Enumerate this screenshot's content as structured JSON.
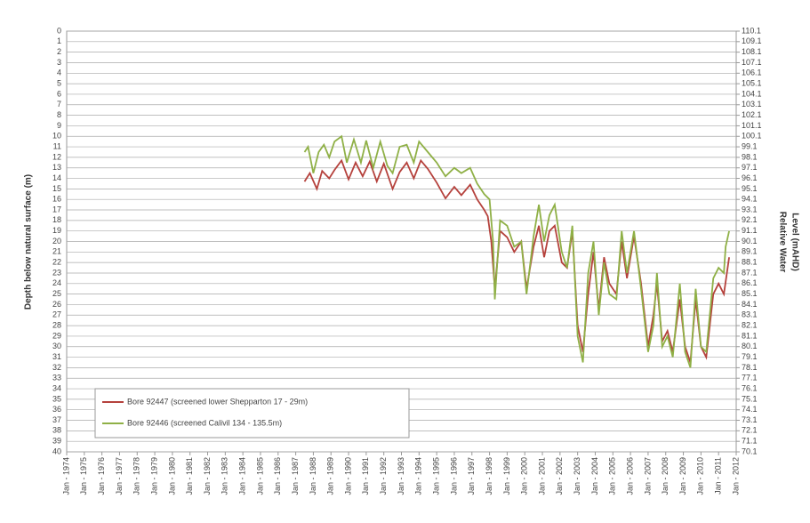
{
  "chart_data": {
    "type": "line",
    "ylabel": "Depth below natural surface (m)",
    "y2label": [
      "Relative Water",
      "Level (mAHD)"
    ],
    "xlim": [
      1974,
      2012
    ],
    "xticks": [
      {
        "value": 1974,
        "label": "Jan - 1974"
      },
      {
        "value": 1975,
        "label": "Jan - 1975"
      },
      {
        "value": 1976,
        "label": "Jan - 1976"
      },
      {
        "value": 1977,
        "label": "Jan - 1977"
      },
      {
        "value": 1978,
        "label": "Jan - 1978"
      },
      {
        "value": 1979,
        "label": "Jan - 1979"
      },
      {
        "value": 1980,
        "label": "Jan - 1980"
      },
      {
        "value": 1981,
        "label": "Jan - 1981"
      },
      {
        "value": 1982,
        "label": "Jan - 1982"
      },
      {
        "value": 1983,
        "label": "Jan - 1983"
      },
      {
        "value": 1984,
        "label": "Jan - 1984"
      },
      {
        "value": 1985,
        "label": "Jan - 1985"
      },
      {
        "value": 1986,
        "label": "Jan - 1986"
      },
      {
        "value": 1987,
        "label": "Jan - 1987"
      },
      {
        "value": 1988,
        "label": "Jan - 1988"
      },
      {
        "value": 1989,
        "label": "Jan - 1989"
      },
      {
        "value": 1990,
        "label": "Jan - 1990"
      },
      {
        "value": 1991,
        "label": "Jan - 1991"
      },
      {
        "value": 1992,
        "label": "Jan - 1992"
      },
      {
        "value": 1993,
        "label": "Jan - 1993"
      },
      {
        "value": 1994,
        "label": "Jan - 1994"
      },
      {
        "value": 1995,
        "label": "Jan - 1995"
      },
      {
        "value": 1996,
        "label": "Jan - 1996"
      },
      {
        "value": 1997,
        "label": "Jan - 1997"
      },
      {
        "value": 1998,
        "label": "Jan - 1998"
      },
      {
        "value": 1999,
        "label": "Jan - 1999"
      },
      {
        "value": 2000,
        "label": "Jan - 2000"
      },
      {
        "value": 2001,
        "label": "Jan - 2001"
      },
      {
        "value": 2002,
        "label": "Jan - 2002"
      },
      {
        "value": 2003,
        "label": "Jan - 2003"
      },
      {
        "value": 2004,
        "label": "Jan - 2004"
      },
      {
        "value": 2005,
        "label": "Jan - 2005"
      },
      {
        "value": 2006,
        "label": "Jan - 2006"
      },
      {
        "value": 2007,
        "label": "Jan - 2007"
      },
      {
        "value": 2008,
        "label": "Jan - 2008"
      },
      {
        "value": 2009,
        "label": "Jan - 2009"
      },
      {
        "value": 2010,
        "label": "Jan - 2010"
      },
      {
        "value": 2011,
        "label": "Jan - 2011"
      },
      {
        "value": 2012,
        "label": "Jan - 2012"
      }
    ],
    "ylim": [
      40,
      0
    ],
    "yticks": [
      0,
      1,
      2,
      3,
      4,
      5,
      6,
      7,
      8,
      9,
      10,
      11,
      12,
      13,
      14,
      15,
      16,
      17,
      18,
      19,
      20,
      21,
      22,
      23,
      24,
      25,
      26,
      27,
      28,
      29,
      30,
      31,
      32,
      33,
      34,
      35,
      36,
      37,
      38,
      39,
      40
    ],
    "y2lim": [
      70.1,
      110.1
    ],
    "y2ticks": [
      110.1,
      109.1,
      108.1,
      107.1,
      106.1,
      105.1,
      104.1,
      103.1,
      102.1,
      101.1,
      100.1,
      99.1,
      98.1,
      97.1,
      96.1,
      95.1,
      94.1,
      93.1,
      92.1,
      91.1,
      90.1,
      89.1,
      88.1,
      87.1,
      86.1,
      85.1,
      84.1,
      83.1,
      82.1,
      81.1,
      80.1,
      79.1,
      78.1,
      77.1,
      76.1,
      75.1,
      74.1,
      73.1,
      72.1,
      71.1,
      70.1
    ],
    "grid": true,
    "legend": "lower left",
    "series": [
      {
        "name": "Bore 92447 (screened lower Shepparton 17 - 29m)",
        "color": "#b5413c",
        "x": [
          1987.5,
          1987.8,
          1988.2,
          1988.5,
          1988.9,
          1989.2,
          1989.6,
          1990,
          1990.4,
          1990.8,
          1991.2,
          1991.6,
          1992,
          1992.5,
          1992.9,
          1993.3,
          1993.7,
          1994.1,
          1994.5,
          1995,
          1995.5,
          1996,
          1996.4,
          1996.9,
          1997.3,
          1997.7,
          1997.9,
          1998.1,
          1998.3,
          1998.6,
          1999,
          1999.4,
          1999.8,
          2000.1,
          2000.5,
          2000.8,
          2001.1,
          2001.4,
          2001.7,
          2002.1,
          2002.4,
          2002.7,
          2003,
          2003.3,
          2003.6,
          2003.9,
          2004.2,
          2004.5,
          2004.8,
          2005.2,
          2005.5,
          2005.8,
          2006.2,
          2006.6,
          2007,
          2007.3,
          2007.5,
          2007.8,
          2008.1,
          2008.4,
          2008.8,
          2009.1,
          2009.4,
          2009.7,
          2010,
          2010.3,
          2010.7,
          2011,
          2011.3,
          2011.6
        ],
        "values": [
          14.3,
          13.5,
          15,
          13.3,
          14,
          13.2,
          12.3,
          14.1,
          12.5,
          13.8,
          12.4,
          14.3,
          12.6,
          15,
          13.4,
          12.5,
          14,
          12.3,
          13.1,
          14.4,
          15.9,
          14.8,
          15.6,
          14.6,
          16,
          17,
          17.6,
          20,
          24.5,
          19,
          19.6,
          21,
          20,
          24.5,
          20.5,
          18.5,
          21.5,
          19,
          18.5,
          22,
          22.5,
          19,
          28,
          30.5,
          25,
          21,
          26.5,
          21.5,
          24,
          25,
          20,
          23.5,
          19.5,
          24,
          30,
          27,
          24,
          29.5,
          28.5,
          30.5,
          25.5,
          30,
          31.5,
          25.5,
          30,
          31,
          25,
          24,
          25,
          21.5
        ]
      },
      {
        "name": "Bore 92446 (screened Calivil 134 - 135.5m)",
        "color": "#8fb046",
        "x": [
          1987.5,
          1987.7,
          1988,
          1988.3,
          1988.6,
          1988.9,
          1989.2,
          1989.6,
          1989.9,
          1990.3,
          1990.7,
          1991,
          1991.4,
          1991.8,
          1992.2,
          1992.5,
          1992.9,
          1993.3,
          1993.7,
          1994,
          1994.5,
          1995,
          1995.5,
          1996,
          1996.4,
          1996.9,
          1997.3,
          1997.7,
          1998,
          1998.2,
          1998.3,
          1998.6,
          1999,
          1999.4,
          1999.8,
          2000.1,
          2000.5,
          2000.8,
          2001.1,
          2001.4,
          2001.7,
          2002.1,
          2002.4,
          2002.7,
          2003,
          2003.3,
          2003.6,
          2003.9,
          2004.2,
          2004.5,
          2004.8,
          2005.2,
          2005.5,
          2005.8,
          2006.2,
          2006.6,
          2007,
          2007.3,
          2007.5,
          2007.8,
          2008.1,
          2008.4,
          2008.8,
          2009.1,
          2009.4,
          2009.7,
          2010,
          2010.3,
          2010.7,
          2011,
          2011.3,
          2011.4,
          2011.6
        ],
        "values": [
          11.5,
          11,
          13.5,
          11.5,
          10.8,
          12,
          10.5,
          10,
          12.5,
          10.3,
          12.5,
          10.4,
          13,
          10.5,
          12.8,
          13.5,
          11,
          10.8,
          12.5,
          10.5,
          11.5,
          12.5,
          13.8,
          13,
          13.5,
          13,
          14.5,
          15.5,
          16,
          20,
          25.5,
          18,
          18.5,
          20.5,
          20,
          25,
          19.5,
          16.5,
          20,
          17.5,
          16.5,
          21,
          22.5,
          18.5,
          29,
          31.5,
          23,
          20,
          27,
          22,
          25,
          25.5,
          19,
          23,
          19,
          24.5,
          30.5,
          28,
          23,
          30,
          29,
          31,
          24,
          30.5,
          32,
          24.5,
          30,
          30.5,
          23.5,
          22.5,
          23,
          20.5,
          19
        ]
      }
    ]
  }
}
